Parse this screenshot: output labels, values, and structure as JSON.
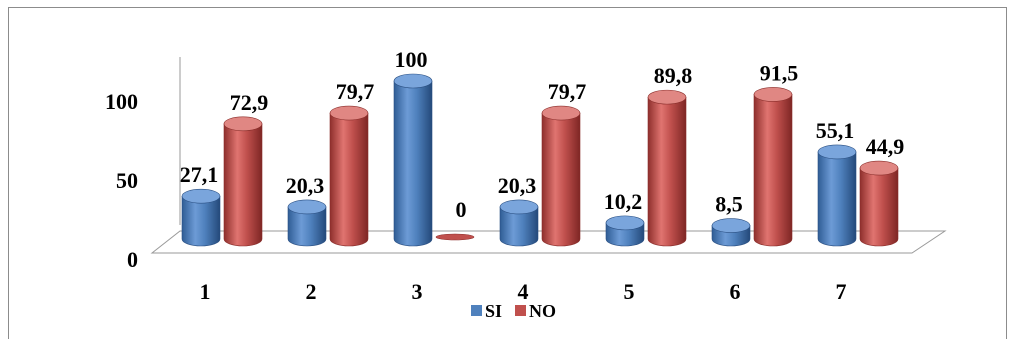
{
  "chart_data": {
    "type": "bar",
    "categories": [
      "1",
      "2",
      "3",
      "4",
      "5",
      "6",
      "7"
    ],
    "series": [
      {
        "name": "SI",
        "color": "#4f81bd",
        "values": [
          27.1,
          20.3,
          100,
          20.3,
          10.2,
          8.5,
          55.1
        ],
        "labels": [
          "27,1",
          "20,3",
          "100",
          "20,3",
          "10,2",
          "8,5",
          "55,1"
        ]
      },
      {
        "name": "NO",
        "color": "#c0504d",
        "values": [
          72.9,
          79.7,
          0,
          79.7,
          89.8,
          91.5,
          44.9
        ],
        "labels": [
          "72,9",
          "79,7",
          "0",
          "79,7",
          "89,8",
          "91,5",
          "44,9"
        ]
      }
    ],
    "yticks": [
      "0",
      "50",
      "100"
    ],
    "ylim": [
      0,
      100
    ],
    "grid": false,
    "legend_position": "bottom",
    "style": "3d-cylinder"
  }
}
